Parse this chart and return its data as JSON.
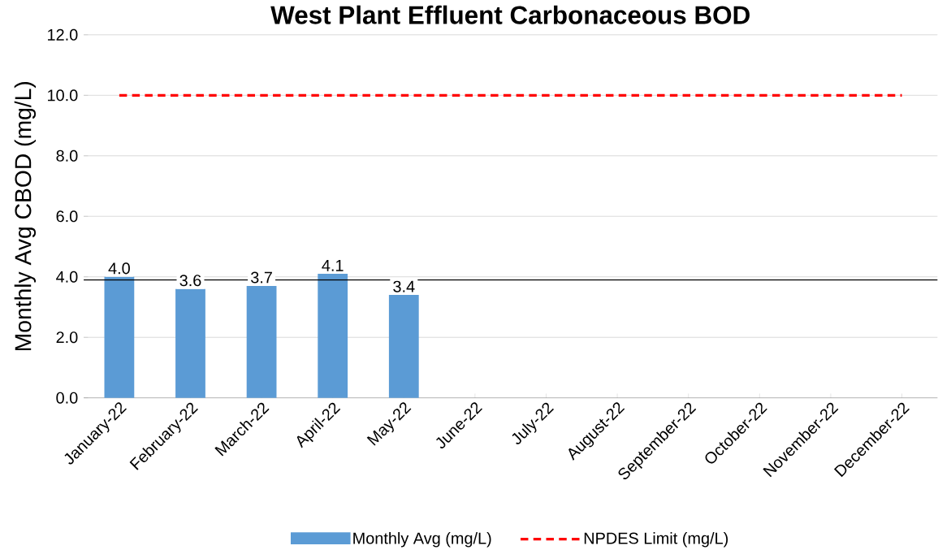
{
  "chart_data": {
    "type": "bar",
    "title": "West Plant Effluent Carbonaceous BOD",
    "ylabel": "Monthly Avg CBOD (mg/L)",
    "categories": [
      "January-22",
      "February-22",
      "March-22",
      "April-22",
      "May-22",
      "June-22",
      "July-22",
      "August-22",
      "September-22",
      "October-22",
      "November-22",
      "December-22"
    ],
    "series": [
      {
        "name": "Monthly Avg (mg/L)",
        "color": "#5b9bd5",
        "values": [
          4.0,
          3.6,
          3.7,
          4.1,
          3.4,
          null,
          null,
          null,
          null,
          null,
          null,
          null
        ],
        "value_labels": [
          "4.0",
          "3.6",
          "3.7",
          "4.1",
          "3.4",
          null,
          null,
          null,
          null,
          null,
          null,
          null
        ]
      },
      {
        "name": "NPDES Limit (mg/L)",
        "type": "line",
        "color": "#ff0000",
        "line_style": "dashed",
        "values": [
          10,
          10,
          10,
          10,
          10,
          10,
          10,
          10,
          10,
          10,
          10,
          10
        ]
      }
    ],
    "ref_lines": [
      {
        "axis": "y",
        "value": 3.9,
        "color": "#000000"
      }
    ],
    "ylim": [
      0,
      12
    ],
    "yticks": [
      {
        "value": 0,
        "label": "0.0"
      },
      {
        "value": 2,
        "label": "2.0"
      },
      {
        "value": 4,
        "label": "4.0"
      },
      {
        "value": 6,
        "label": "6.0"
      },
      {
        "value": 8,
        "label": "8.0"
      },
      {
        "value": 10,
        "label": "10.0"
      },
      {
        "value": 12,
        "label": "12.0"
      }
    ],
    "grid": "y",
    "legend": "bottom"
  }
}
